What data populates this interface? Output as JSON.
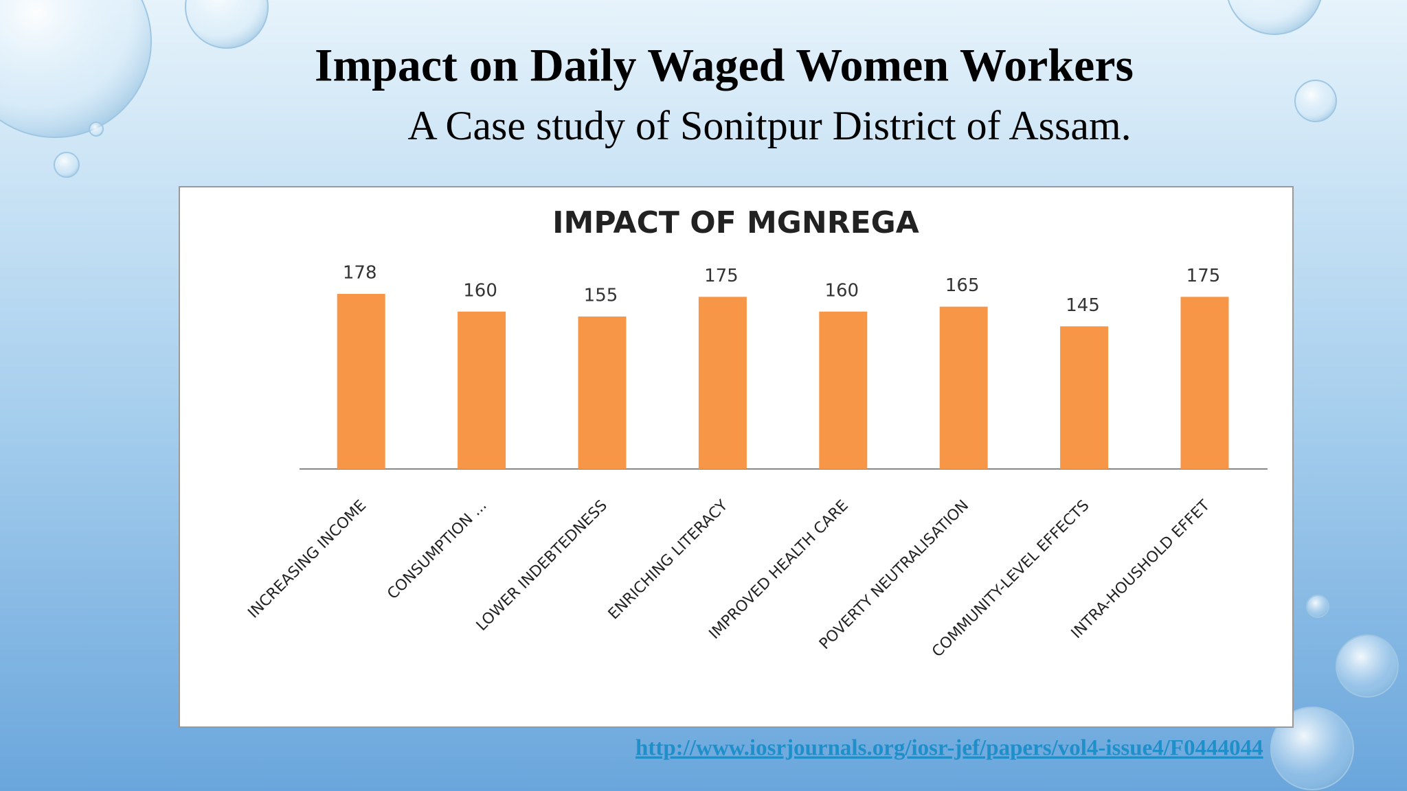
{
  "title": "Impact on Daily Waged Women Workers",
  "subtitle": "A Case study of Sonitpur District of Assam.",
  "chart_data": {
    "type": "bar",
    "title": "IMPACT OF MGNREGA",
    "categories": [
      "INCREASING INCOME",
      "CONSUMPTION ...",
      "LOWER INDEBTEDNESS",
      "ENRICHING LITERACY",
      "IMPROVED HEALTH CARE",
      "POVERTY NEUTRALISATION",
      "COMMUNITY-LEVEL EFFECTS",
      "INTRA-HOUSHOLD EFFET"
    ],
    "values": [
      178,
      160,
      155,
      175,
      160,
      165,
      145,
      175
    ],
    "color": "#f79646"
  },
  "link": "http://www.iosrjournals.org/iosr-jef/papers/vol4-issue4/F0444044"
}
